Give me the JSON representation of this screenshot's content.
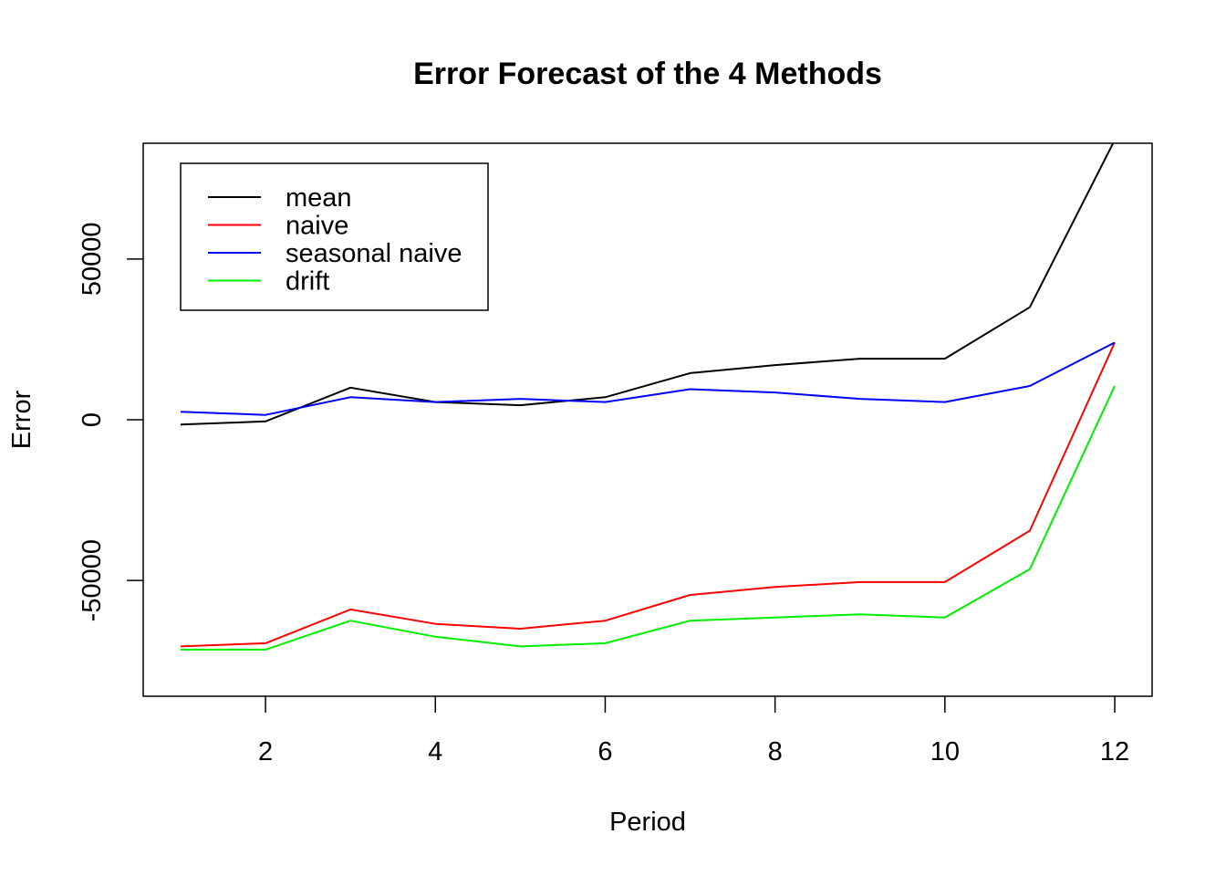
{
  "chart_data": {
    "type": "line",
    "title": "Error Forecast of the 4 Methods",
    "xlabel": "Period",
    "ylabel": "Error",
    "x": [
      1,
      2,
      3,
      4,
      5,
      6,
      7,
      8,
      9,
      10,
      11,
      12
    ],
    "xlim": [
      1,
      12
    ],
    "ylim": [
      -86000,
      86000
    ],
    "x_ticks": [
      2,
      4,
      6,
      8,
      10,
      12
    ],
    "y_ticks": [
      -50000,
      0,
      50000
    ],
    "y_tick_labels": [
      "-50000",
      "0",
      "50000"
    ],
    "grid": false,
    "legend_position": "top-left",
    "series": [
      {
        "name": "mean",
        "color": "#000000",
        "values": [
          -1500,
          -500,
          10000,
          5500,
          4500,
          7000,
          14500,
          17000,
          19000,
          19000,
          35000,
          87000
        ]
      },
      {
        "name": "naive",
        "color": "#ff0000",
        "values": [
          -70500,
          -69500,
          -59000,
          -63500,
          -65000,
          -62500,
          -54500,
          -52000,
          -50500,
          -50500,
          -34500,
          24000
        ]
      },
      {
        "name": "seasonal naive",
        "color": "#0000ff",
        "values": [
          2500,
          1500,
          7000,
          5500,
          6500,
          5500,
          9500,
          8500,
          6500,
          5500,
          10500,
          24000
        ]
      },
      {
        "name": "drift",
        "color": "#00ee00",
        "values": [
          -71500,
          -71500,
          -62500,
          -67500,
          -70500,
          -69500,
          -62500,
          -61500,
          -60500,
          -61500,
          -46500,
          10500
        ]
      }
    ]
  }
}
